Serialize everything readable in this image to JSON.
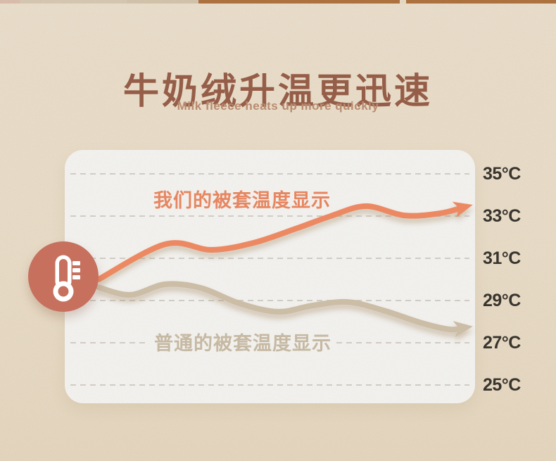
{
  "header": {
    "title": "牛奶绒升温更迅速",
    "subtitle": "Milk fleece heats up more quickly"
  },
  "colors": {
    "background": "#ebdec9",
    "panel": "#f6f5f2",
    "title_brown": "#99604a",
    "subtitle_brown": "#bd8e72",
    "accent_orange": "#ec8962",
    "neutral_tan": "#cbbda6",
    "badge_red": "#c7705e",
    "tick_text": "#3a362f",
    "gridline": "#d5d1c9",
    "top_strip_brown": "#b07440"
  },
  "badge": {
    "icon": "thermometer-icon"
  },
  "chart_data": {
    "type": "line",
    "title": "牛奶绒升温更迅速",
    "subtitle": "Milk fleece heats up more quickly",
    "ylabel": "temperature",
    "y_tick_labels": [
      "35°C",
      "33°C",
      "31°C",
      "29°C",
      "27°C",
      "25°C"
    ],
    "y_tick_values": [
      35,
      33,
      31,
      29,
      27,
      25
    ],
    "ylim": [
      25,
      35
    ],
    "grid": "horizontal-dashed",
    "legend_position": "inline-curve-labels",
    "series": [
      {
        "name": "我们的被套温度显示",
        "color": "#ec8962",
        "start_value_c": 30.0,
        "end_value_c": 33.4,
        "x_frac": [
          0,
          0.182,
          0.307,
          0.421,
          0.536,
          0.632,
          0.728,
          0.833,
          0.929,
          1.0
        ],
        "values_c": [
          30.0,
          31.67,
          31.4,
          31.73,
          32.4,
          33.0,
          33.47,
          33.03,
          33.13,
          33.45
        ]
      },
      {
        "name": "普通的被套温度显示",
        "color": "#cbbda6",
        "start_value_c": 29.6,
        "end_value_c": 27.8,
        "x_frac": [
          0,
          0.086,
          0.182,
          0.278,
          0.383,
          0.489,
          0.584,
          0.68,
          0.776,
          0.881,
          0.958,
          1.0
        ],
        "values_c": [
          29.63,
          29.27,
          29.77,
          29.6,
          28.87,
          28.47,
          28.77,
          28.93,
          28.53,
          27.93,
          27.63,
          27.73
        ]
      }
    ]
  }
}
